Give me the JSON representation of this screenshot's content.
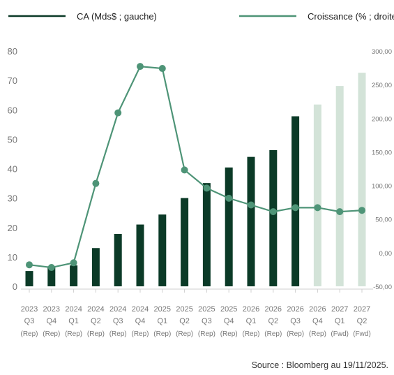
{
  "chart_data": {
    "type": "bar+line",
    "categories": [
      [
        "2023",
        "Q3",
        "(Rep)"
      ],
      [
        "2023",
        "Q4",
        "(Rep)"
      ],
      [
        "2024",
        "Q1",
        "(Rep)"
      ],
      [
        "2024",
        "Q2",
        "(Rep)"
      ],
      [
        "2024",
        "Q3",
        "(Rep)"
      ],
      [
        "2024",
        "Q4",
        "(Rep)"
      ],
      [
        "2025",
        "Q1",
        "(Rep)"
      ],
      [
        "2025",
        "Q2",
        "(Rep)"
      ],
      [
        "2025",
        "Q3",
        "(Rep)"
      ],
      [
        "2025",
        "Q4",
        "(Rep)"
      ],
      [
        "2026",
        "Q1",
        "(Rep)"
      ],
      [
        "2026",
        "Q2",
        "(Rep)"
      ],
      [
        "2026",
        "Q3",
        "(Rep)"
      ],
      [
        "2026",
        "Q4",
        "(Rep)"
      ],
      [
        "2027",
        "Q1",
        "(Fwd)"
      ],
      [
        "2027",
        "Q2",
        "(Fwd)"
      ]
    ],
    "series": [
      {
        "name": "CA (Mds$ ; gauche)",
        "kind": "bar",
        "axis": "left",
        "values": [
          5.2,
          6.8,
          7.1,
          13.0,
          17.8,
          21.0,
          24.4,
          30.0,
          35.1,
          40.4,
          44.0,
          46.3,
          57.8,
          61.8,
          68.1,
          72.6
        ],
        "colors": [
          "#0b3a27",
          "#0b3a27",
          "#0b3a27",
          "#0b3a27",
          "#0b3a27",
          "#0b3a27",
          "#0b3a27",
          "#0b3a27",
          "#0b3a27",
          "#0b3a27",
          "#0b3a27",
          "#0b3a27",
          "#0b3a27",
          "#d3e3d8",
          "#d3e3d8",
          "#d3e3d8"
        ]
      },
      {
        "name": "Croissance (% ; droite)",
        "kind": "line",
        "axis": "right",
        "color": "#4e9477",
        "values": [
          -18,
          -22,
          -15,
          103,
          208,
          277,
          274,
          123,
          96,
          81,
          71,
          61,
          67,
          67,
          61,
          63
        ]
      }
    ],
    "y_left": {
      "min": 0,
      "max": 80,
      "ticks": [
        "0",
        "10",
        "20",
        "30",
        "40",
        "50",
        "60",
        "70",
        "80"
      ]
    },
    "y_right": {
      "min": -50,
      "max": 300,
      "ticks": [
        "-50,00",
        "0,00",
        "50,00",
        "100,00",
        "150,00",
        "200,00",
        "250,00",
        "300,00"
      ]
    },
    "grid": false,
    "legend_placement": "top",
    "source": "Source : Bloomberg au 19/11/2025."
  }
}
